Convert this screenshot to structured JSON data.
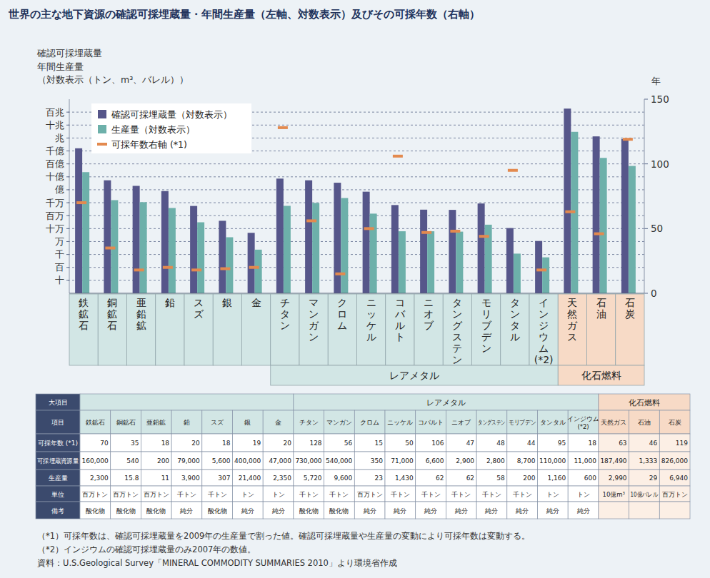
{
  "chart_data": {
    "type": "bar",
    "title": "世界の主な地下資源の確認可採埋蔵量・年間生産量（左軸、対数表示）及びその可採年数（右軸）",
    "ylabel": [
      "確認可採埋蔵量",
      "年間生産量",
      "（対数表示（トン、m³、バレル））"
    ],
    "y2label": "年",
    "categories": [
      "鉄鉱石",
      "銅鉱石",
      "亜鉛鉱",
      "鉛",
      "スズ",
      "銀",
      "金",
      "チタン",
      "マンガン",
      "クロム",
      "ニッケル",
      "コバルト",
      "ニオブ",
      "タングステン",
      "モリブデン",
      "タンタル",
      "インジウム(*2)",
      "天然ガス",
      "石油",
      "石炭"
    ],
    "groups": [
      null,
      null,
      null,
      null,
      null,
      null,
      null,
      "レアメタル",
      "レアメタル",
      "レアメタル",
      "レアメタル",
      "レアメタル",
      "レアメタル",
      "レアメタル",
      "レアメタル",
      "レアメタル",
      "レアメタル",
      "化石燃料",
      "化石燃料",
      "化石燃料"
    ],
    "series": [
      {
        "name": "確認可採埋蔵量（対数表示）",
        "color": "#56568a",
        "values": [
          160000000000,
          540000000,
          200000000,
          79000000,
          5600000,
          400000,
          47000,
          730000000,
          540000000,
          350000000,
          71000000,
          6600000,
          2900000,
          2800000,
          8700000,
          110000,
          11000,
          187490000000000,
          1333000000000,
          826000000000
        ]
      },
      {
        "name": "生産量（対数表示）",
        "color": "#6db0aa",
        "values": [
          2300000000,
          15800000,
          11000000,
          3900000,
          307000,
          21400,
          2350,
          5720000,
          9600000,
          23000000,
          1430000,
          62000,
          62000,
          58000,
          200000,
          1160,
          600,
          2990000000000,
          29000000000,
          6940000000
        ]
      },
      {
        "name": "可採年数右軸 (*1)",
        "type": "scatter",
        "marker": "dash",
        "color": "#e38a4f",
        "axis": "y2",
        "values": [
          70,
          35,
          18,
          20,
          18,
          19,
          20,
          128,
          56,
          15,
          50,
          106,
          47,
          48,
          44,
          95,
          18,
          63,
          46,
          119
        ]
      }
    ],
    "log": "y",
    "ylim": [
      1,
      1000000000000000
    ],
    "yticks": [
      {
        "value": 10,
        "label": "十"
      },
      {
        "value": 100,
        "label": "百"
      },
      {
        "value": 1000,
        "label": "千"
      },
      {
        "value": 10000,
        "label": "万"
      },
      {
        "value": 100000,
        "label": "十万"
      },
      {
        "value": 1000000,
        "label": "百万"
      },
      {
        "value": 10000000,
        "label": "千万"
      },
      {
        "value": 100000000,
        "label": "億"
      },
      {
        "value": 1000000000,
        "label": "十億"
      },
      {
        "value": 10000000000,
        "label": "百億"
      },
      {
        "value": 100000000000,
        "label": "千億"
      },
      {
        "value": 1000000000000,
        "label": "兆"
      },
      {
        "value": 10000000000000,
        "label": "十兆"
      },
      {
        "value": 100000000000000,
        "label": "百兆"
      }
    ],
    "y2lim": [
      0,
      150
    ],
    "y2ticks": [
      0,
      50,
      100,
      150
    ],
    "grid": true,
    "legend": "upper left"
  },
  "table": {
    "rows": [
      [
        "大項目",
        null,
        null,
        null,
        null,
        null,
        null,
        null,
        "レアメタル",
        "レアメタル",
        "レアメタル",
        "レアメタル",
        "レアメタル",
        "レアメタル",
        "レアメタル",
        "レアメタル",
        "レアメタル",
        "レアメタル",
        "化石燃料",
        "化石燃料",
        "化石燃料"
      ],
      [
        "項目",
        "鉄鉱石",
        "銅鉱石",
        "亜鉛鉱",
        "鉛",
        "スズ",
        "銀",
        "金",
        "チタン",
        "マンガン",
        "クロム",
        "ニッケル",
        "コバルト",
        "ニオブ",
        "タングステン",
        "モリブデン",
        "タンタル",
        "インジウム(*2)",
        "天然ガス",
        "石油",
        "石炭"
      ],
      [
        "可採年数 (*1)",
        "70",
        "35",
        "18",
        "20",
        "18",
        "19",
        "20",
        "128",
        "56",
        "15",
        "50",
        "106",
        "47",
        "48",
        "44",
        "95",
        "18",
        "63",
        "46",
        "119"
      ],
      [
        "可採埋蔵資源量",
        "160,000",
        "540",
        "200",
        "79,000",
        "5,600",
        "400,000",
        "47,000",
        "730,000",
        "540,000",
        "350",
        "71,000",
        "6,600",
        "2,900",
        "2,800",
        "8,700",
        "110,000",
        "11,000",
        "187,490",
        "1,333",
        "826,000"
      ],
      [
        "生産量",
        "2,300",
        "15.8",
        "11",
        "3,900",
        "307",
        "21,400",
        "2,350",
        "5,720",
        "9,600",
        "23",
        "1,430",
        "62",
        "62",
        "58",
        "200",
        "1,160",
        "600",
        "2,990",
        "29",
        "6,940"
      ],
      [
        "単位",
        "百万トン",
        "百万トン",
        "百万トン",
        "千トン",
        "千トン",
        "トン",
        "トン",
        "千トン",
        "千トン",
        "百万トン",
        "千トン",
        "千トン",
        "千トン",
        "千トン",
        "千トン",
        "トン",
        "トン",
        "10億m³",
        "10億バレル",
        "百万トン"
      ],
      [
        "備考",
        "酸化物",
        "酸化物",
        "酸化物",
        "純分",
        "酸化物",
        "純分",
        "純分",
        "酸化物",
        "酸化物",
        "純分",
        "純分",
        "純分",
        "純分",
        "純分",
        "純分",
        "純分",
        "純分",
        null,
        null,
        null
      ]
    ]
  },
  "notes": [
    "（*1）可採年数は、確認可採埋蔵量を2009年の生産量で割った値。確認可採埋蔵量や生産量の変動により可採年数は変動する。",
    "（*2）インジウムの確認可採埋蔵量のみ2007年の数値。",
    "資料：U.S.Geological Survey「MINERAL COMMODITY SUMMARIES 2010」より環境省作成"
  ]
}
